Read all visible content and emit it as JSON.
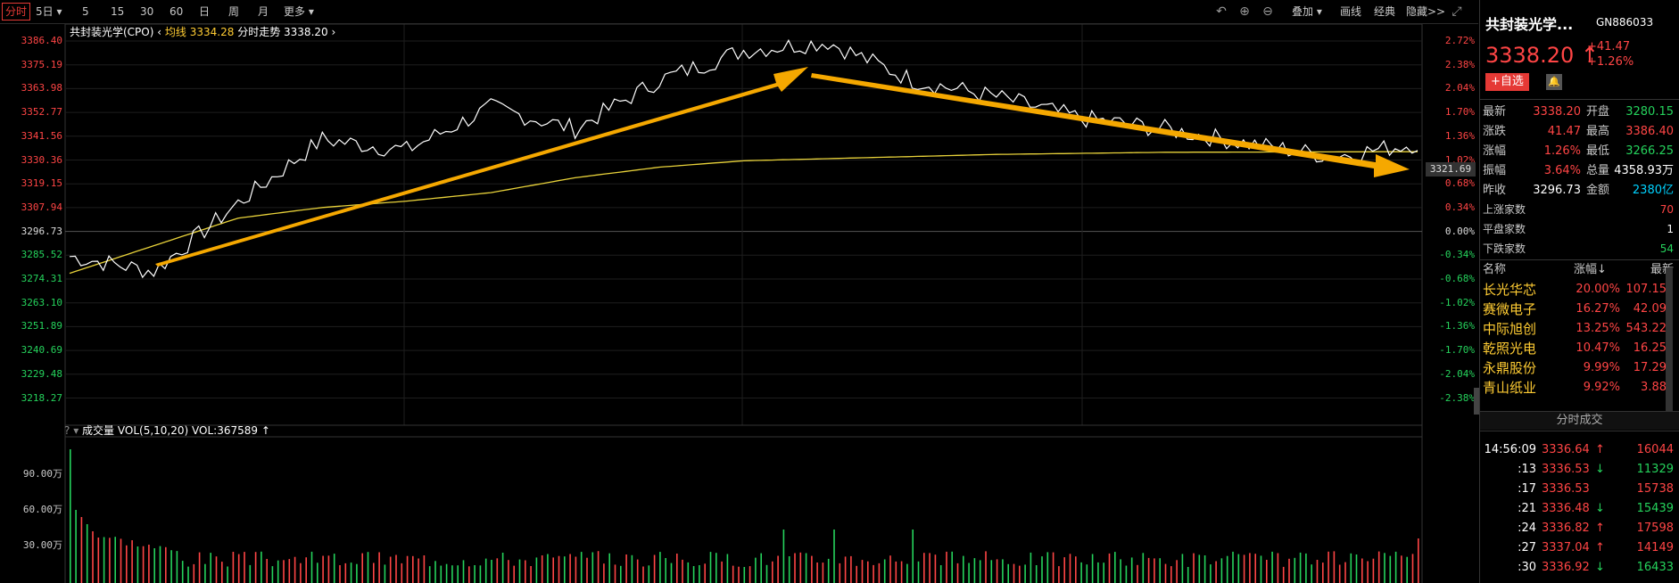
{
  "toolbar": {
    "tabs": [
      "分时",
      "5日",
      "5",
      "15",
      "30",
      "60",
      "日",
      "周",
      "月",
      "更多"
    ],
    "right": [
      "叠加",
      "画线",
      "经典",
      "隐藏>>"
    ]
  },
  "chart": {
    "title_name": "共封装光学(CPO)",
    "avg_label": "均线",
    "avg_value": "3334.28",
    "trend_label": "分时走势",
    "trend_value": "3338.20",
    "current_tag": "3321.69",
    "vol_label": "成交量",
    "vol_indicator": "VOL(5,10,20)",
    "vol_value": "VOL:367589",
    "left_ticks": [
      "3386.40",
      "3375.19",
      "3363.98",
      "3352.77",
      "3341.56",
      "3330.36",
      "3319.15",
      "3307.94",
      "3296.73",
      "3285.52",
      "3274.31",
      "3263.10",
      "3251.89",
      "3240.69",
      "3229.48",
      "3218.27"
    ],
    "right_ticks": [
      "2.72%",
      "2.38%",
      "2.04%",
      "1.70%",
      "1.36%",
      "1.02%",
      "0.68%",
      "0.34%",
      "0.00%",
      "-0.34%",
      "-0.68%",
      "-1.02%",
      "-1.36%",
      "-1.70%",
      "-2.04%",
      "-2.38%"
    ],
    "vol_ticks": [
      "90.00万",
      "60.00万",
      "30.00万"
    ],
    "colors": {
      "up": "#ff4545",
      "down": "#25d35c",
      "avg": "#e8d23a",
      "price": "#ffffff",
      "arrow": "#f5a800"
    }
  },
  "chart_data": {
    "type": "line",
    "x": [
      0,
      15,
      30,
      45,
      60,
      75,
      90,
      105,
      120,
      135,
      150,
      165,
      180,
      195,
      210,
      225,
      240
    ],
    "series": [
      {
        "values": [
          3285,
          3278,
          3310,
          3340,
          3335,
          3355,
          3345,
          3368,
          3382,
          3386,
          3368,
          3360,
          3350,
          3345,
          3338,
          3332,
          3338.2
        ]
      },
      {
        "values": [
          3277,
          3290,
          3303,
          3308,
          3311,
          3315,
          3322,
          3327,
          3330,
          3331,
          3332,
          3333,
          3333.5,
          3334,
          3334.1,
          3334.2,
          3334.28
        ]
      }
    ],
    "ylim": [
      3218.27,
      3386.4
    ]
  },
  "sidebar": {
    "name": "共封装光学...",
    "code": "GN886033",
    "price": "3338.20",
    "change": "+41.47",
    "change_pct": "+1.26%",
    "watch_button": "+自选",
    "quote": [
      {
        "l1": "最新",
        "v1": "3338.20",
        "l2": "开盘",
        "v2": "3280.15"
      },
      {
        "l1": "涨跌",
        "v1": "41.47",
        "l2": "最高",
        "v2": "3386.40"
      },
      {
        "l1": "涨幅",
        "v1": "1.26%",
        "l2": "最低",
        "v2": "3266.25"
      },
      {
        "l1": "振幅",
        "v1": "3.64%",
        "l2": "总量",
        "v2": "4358.93万"
      },
      {
        "l1": "昨收",
        "v1": "3296.73",
        "l2": "金额",
        "v2": "2380亿"
      }
    ],
    "breadth": [
      {
        "label": "上涨家数",
        "value": "70"
      },
      {
        "label": "平盘家数",
        "value": "1"
      },
      {
        "label": "下跌家数",
        "value": "54"
      }
    ],
    "list_headers": [
      "名称",
      "涨幅",
      "最新"
    ],
    "stocks": [
      {
        "name": "长光华芯",
        "pct": "20.00%",
        "price": "107.15"
      },
      {
        "name": "赛微电子",
        "pct": "16.27%",
        "price": "42.09"
      },
      {
        "name": "中际旭创",
        "pct": "13.25%",
        "price": "543.22"
      },
      {
        "name": "乾照光电",
        "pct": "10.47%",
        "price": "16.25"
      },
      {
        "name": "永鼎股份",
        "pct": "9.99%",
        "price": "17.29"
      },
      {
        "name": "青山纸业",
        "pct": "9.92%",
        "price": "3.88"
      }
    ],
    "trades_title": "分时成交",
    "trades": [
      {
        "time": "14:56:09",
        "price": "3336.64",
        "dir": "↑",
        "vol": "16044",
        "c": "red"
      },
      {
        "time": ":13",
        "price": "3336.53",
        "dir": "↓",
        "vol": "11329",
        "c": "green"
      },
      {
        "time": ":17",
        "price": "3336.53",
        "dir": "",
        "vol": "15738",
        "c": "red"
      },
      {
        "time": ":21",
        "price": "3336.48",
        "dir": "↓",
        "vol": "15439",
        "c": "green"
      },
      {
        "time": ":24",
        "price": "3336.82",
        "dir": "↑",
        "vol": "17598",
        "c": "red"
      },
      {
        "time": ":27",
        "price": "3337.04",
        "dir": "↑",
        "vol": "14149",
        "c": "red"
      },
      {
        "time": ":30",
        "price": "3336.92",
        "dir": "↓",
        "vol": "16433",
        "c": "green"
      }
    ]
  }
}
